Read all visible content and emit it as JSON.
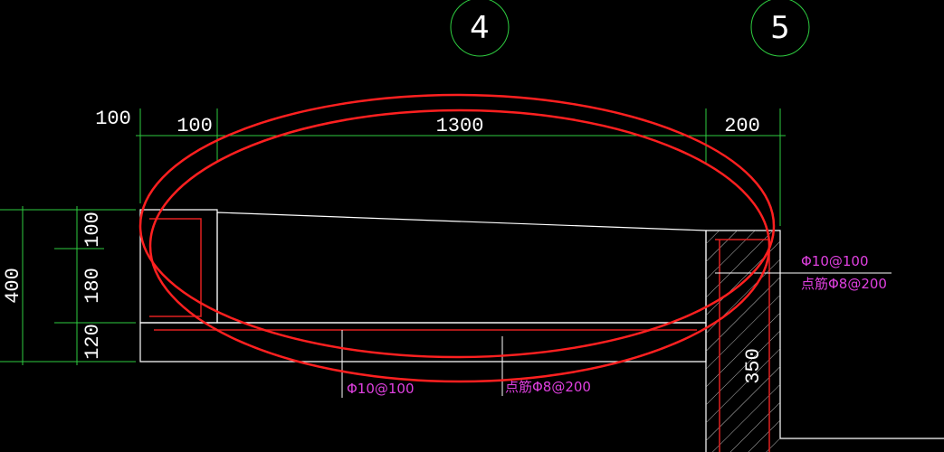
{
  "grid_axes": [
    {
      "label": "4"
    },
    {
      "label": "5"
    }
  ],
  "dimensions": {
    "horizontal": [
      "100",
      "100",
      "1300",
      "200"
    ],
    "vertical": [
      "100",
      "180",
      "120"
    ],
    "total_height": "400",
    "wall_height": "350"
  },
  "rebar_notes": [
    "Φ10@100",
    "点筋Φ8@200",
    "Φ10@100",
    "点筋Φ8@200"
  ]
}
